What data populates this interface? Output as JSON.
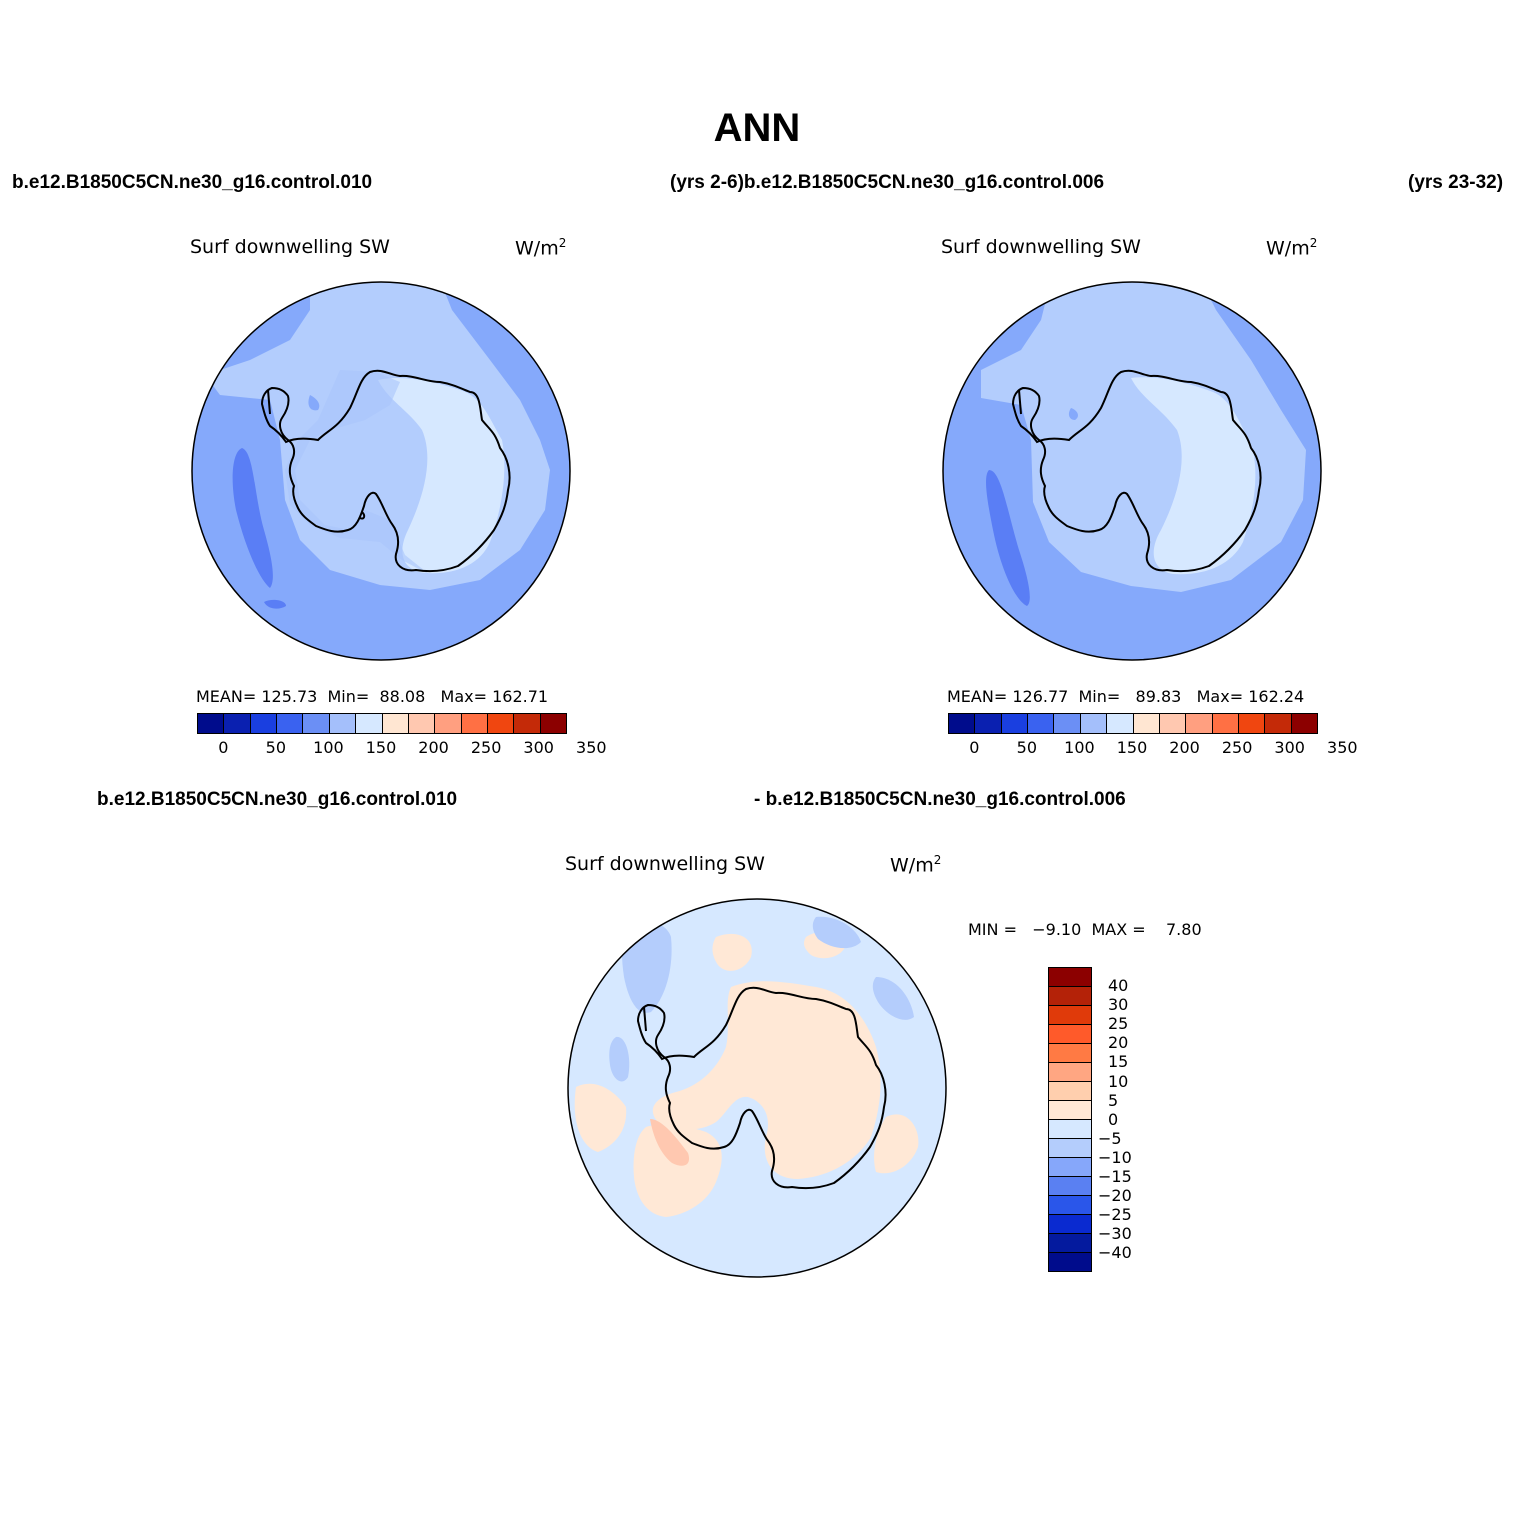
{
  "title": "ANN",
  "header": {
    "case_a_left": "b.e12.B1850C5CN.ne30_g16.control.010",
    "case_a_right_combined": "(yrs 2-6)b.e12.B1850C5CN.ne30_g16.control.006",
    "case_b_right": "(yrs 23-32)"
  },
  "panels": [
    {
      "variable": "Surf downwelling SW",
      "units": "W/m",
      "units_sup": "2",
      "stats": {
        "mean_label": "MEAN=",
        "mean": "125.73",
        "min_label": "Min=",
        "min": "88.08",
        "max_label": "Max=",
        "max": "162.71"
      },
      "colorbar_ticks": [
        "0",
        "50",
        "100",
        "150",
        "200",
        "250",
        "300",
        "350"
      ]
    },
    {
      "variable": "Surf downwelling SW",
      "units": "W/m",
      "units_sup": "2",
      "stats": {
        "mean_label": "MEAN=",
        "mean": "126.77",
        "min_label": "Min=",
        "min": "89.83",
        "max_label": "Max=",
        "max": "162.24"
      },
      "colorbar_ticks": [
        "0",
        "50",
        "100",
        "150",
        "200",
        "250",
        "300",
        "350"
      ]
    }
  ],
  "diff": {
    "case_left": "b.e12.B1850C5CN.ne30_g16.control.010",
    "case_right": "- b.e12.B1850C5CN.ne30_g16.control.006",
    "variable": "Surf downwelling SW",
    "units": "W/m",
    "units_sup": "2",
    "minmax": "MIN =   −9.10  MAX =    7.80",
    "colorbar_ticks": [
      "40",
      "30",
      "25",
      "20",
      "15",
      "10",
      "5",
      "0",
      "−5",
      "−10",
      "−15",
      "−20",
      "−25",
      "−30",
      "−40"
    ]
  },
  "colors": {
    "abs_scale": [
      "#000c8c",
      "#0a20b0",
      "#1a3fe0",
      "#3a62f0",
      "#6b8ff5",
      "#a4bffb",
      "#d6e8ff",
      "#ffe6d2",
      "#ffc8b0",
      "#ff9f80",
      "#ff7044",
      "#f04610",
      "#c42a08",
      "#8c0000"
    ],
    "diff_scale": [
      "#8c0000",
      "#b42208",
      "#e03a0a",
      "#ff5a2a",
      "#ff7a44",
      "#ffa682",
      "#ffcfae",
      "#ffe8d6",
      "#d6e8ff",
      "#b4cdfc",
      "#86a7fa",
      "#5a80f2",
      "#2a56ea",
      "#0a2ad0",
      "#041a9e",
      "#000c8c"
    ],
    "ocean_main": "#85a9fb",
    "ocean_light": "#b3cdfd",
    "ocean_dark": "#5a7ef5",
    "ice_pale": "#d6e8ff",
    "diff_bg": "#d6e8ff",
    "diff_pos": "#ffe8d6",
    "diff_pos2": "#ffc8b0",
    "diff_neg": "#b4cdfc"
  }
}
